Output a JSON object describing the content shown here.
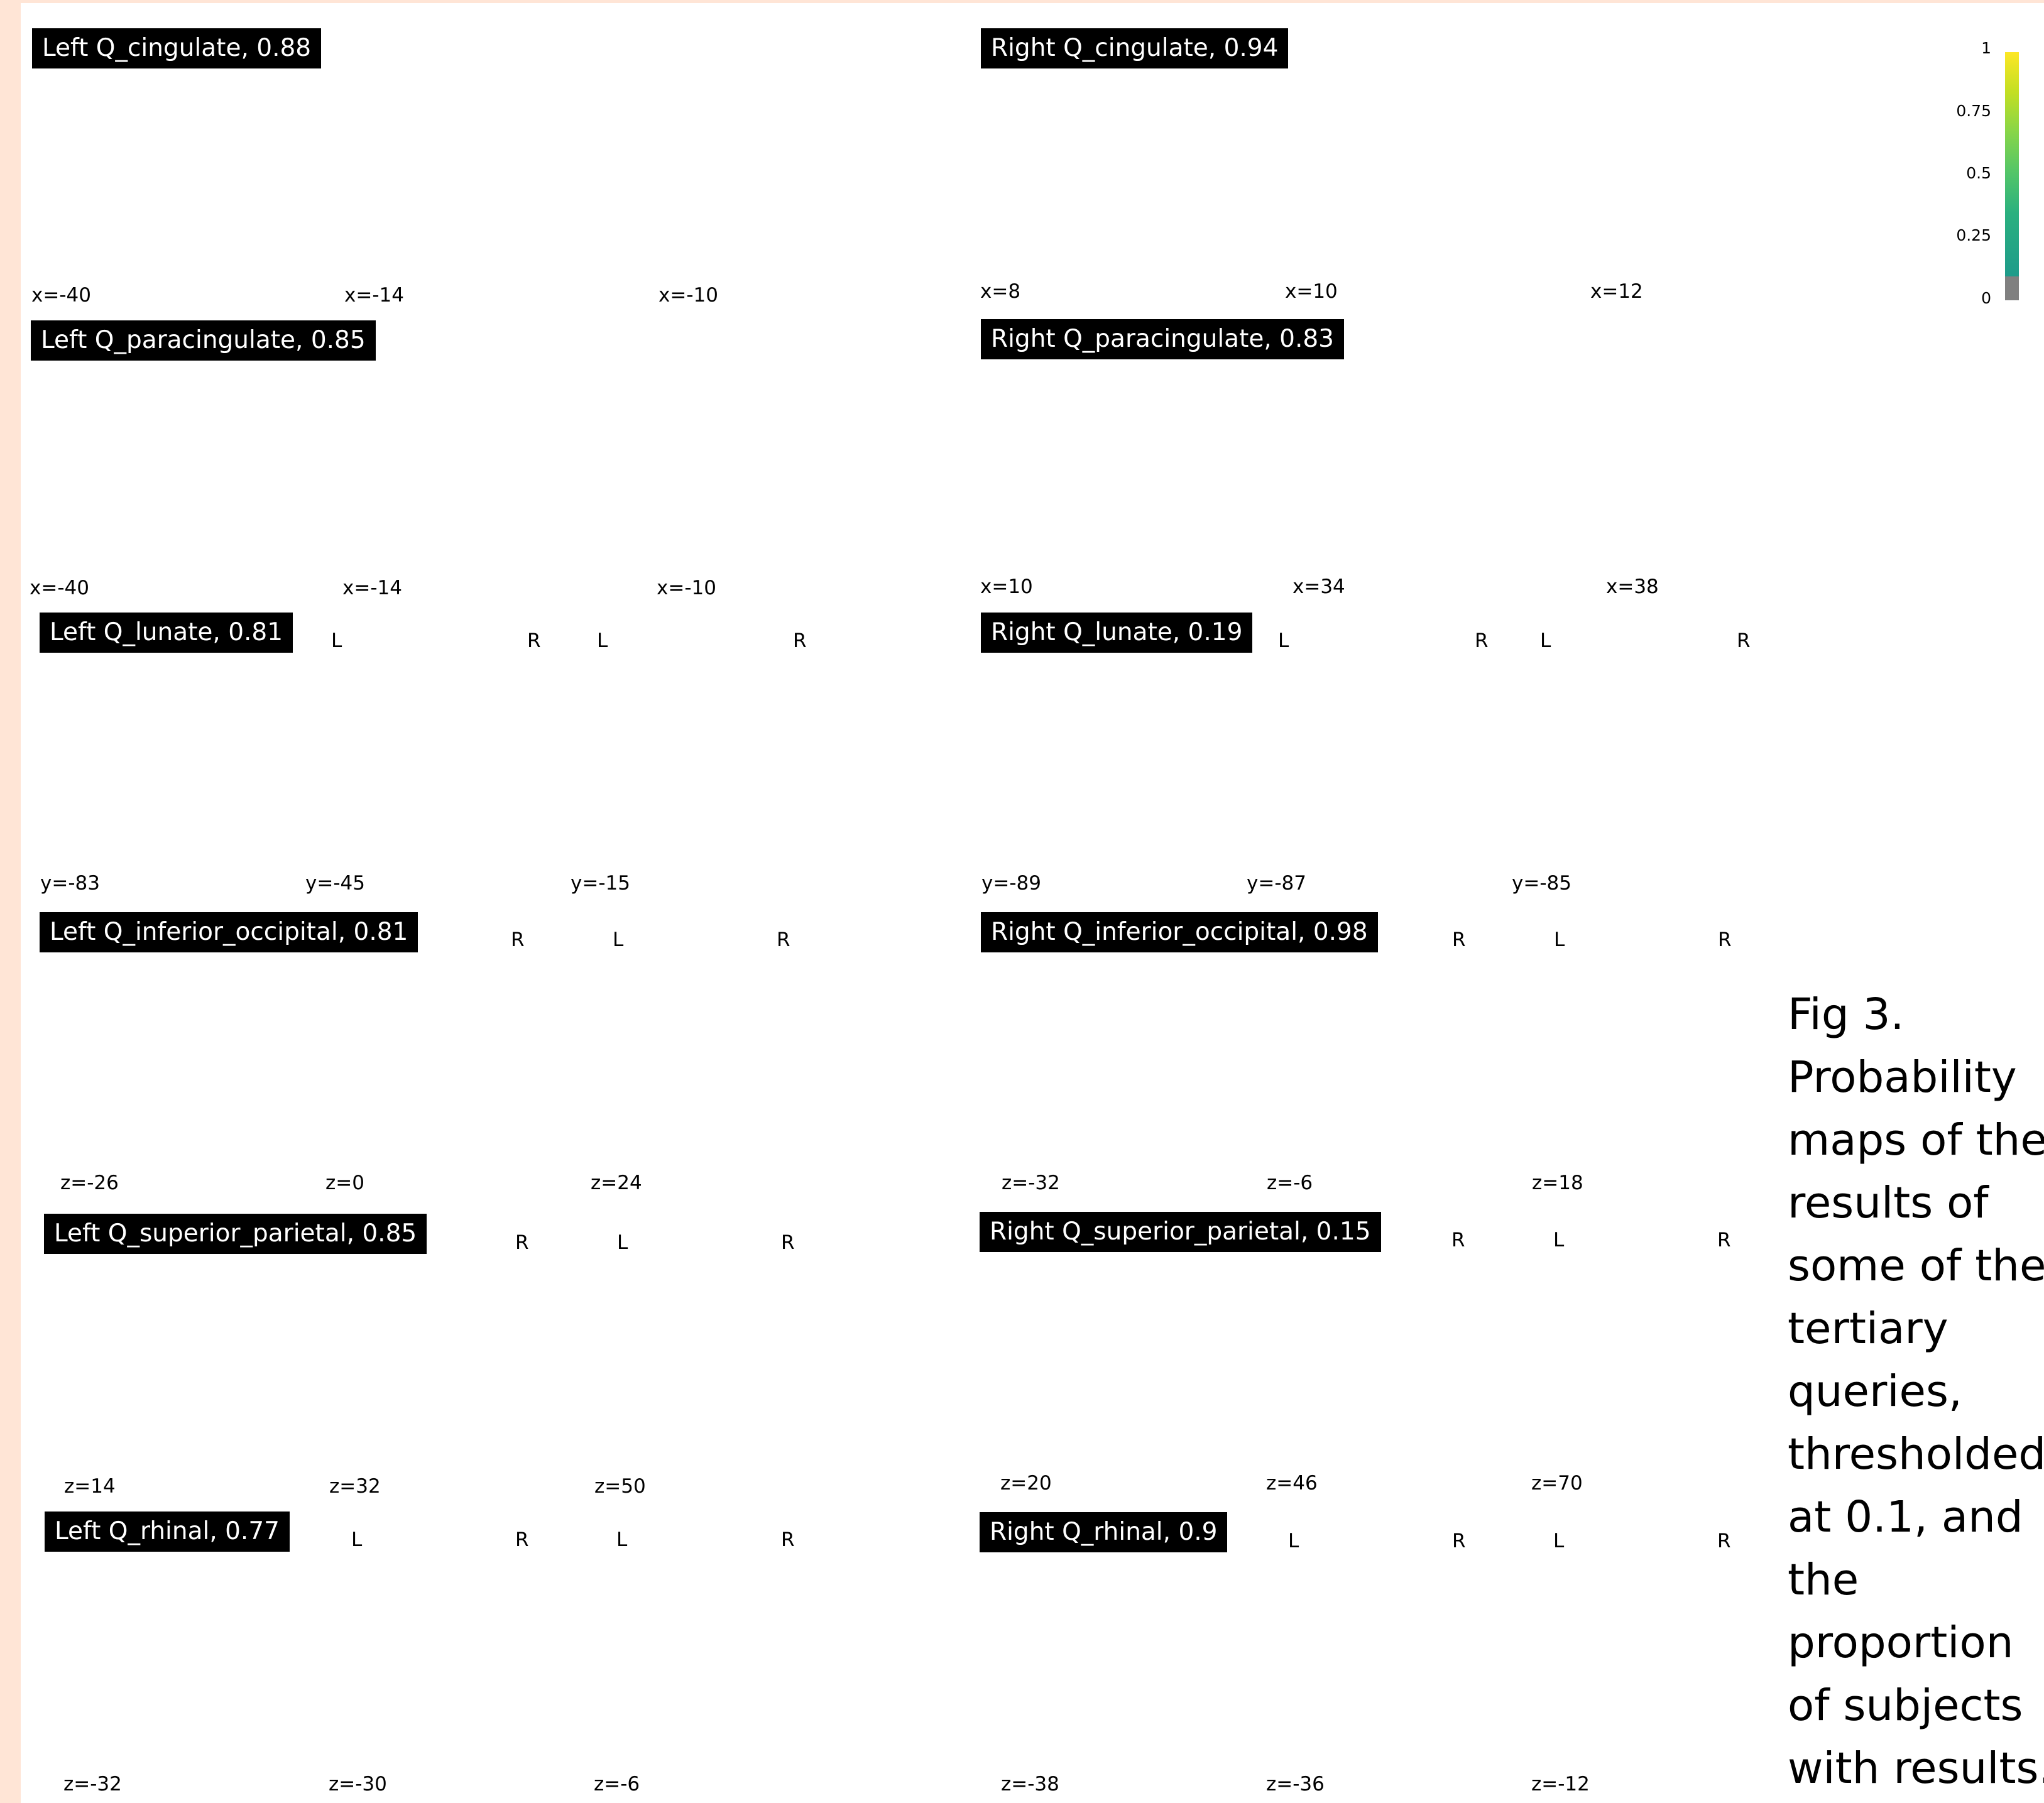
{
  "panels": {
    "left_cingulate": {
      "label": "Left Q_cingulate, 0.88",
      "coords": [
        "x=-40",
        "x=-14",
        "x=-10"
      ]
    },
    "right_cingulate": {
      "label": "Right Q_cingulate, 0.94",
      "coords": [
        "x=8",
        "x=10",
        "x=12"
      ]
    },
    "left_paracingulate": {
      "label": "Left Q_paracingulate, 0.85",
      "coords": [
        "x=-40",
        "x=-14",
        "x=-10"
      ]
    },
    "right_paracingulate": {
      "label": "Right Q_paracingulate, 0.83",
      "coords": [
        "x=10",
        "x=34",
        "x=38"
      ]
    },
    "left_lunate": {
      "label": "Left Q_lunate, 0.81",
      "coords": [
        "y=-83",
        "y=-45",
        "y=-15"
      ]
    },
    "right_lunate": {
      "label": "Right Q_lunate, 0.19",
      "coords": [
        "y=-89",
        "y=-87",
        "y=-85"
      ]
    },
    "left_inferior_occipital": {
      "label": "Left Q_inferior_occipital, 0.81",
      "coords": [
        "z=-26",
        "z=0",
        "z=24"
      ]
    },
    "right_inferior_occipital": {
      "label": "Right Q_inferior_occipital, 0.98",
      "coords": [
        "z=-32",
        "z=-6",
        "z=18"
      ]
    },
    "left_superior_parietal": {
      "label": "Left Q_superior_parietal, 0.85",
      "coords": [
        "z=14",
        "z=32",
        "z=50"
      ]
    },
    "right_superior_parietal": {
      "label": "Right Q_superior_parietal, 0.15",
      "coords": [
        "z=20",
        "z=46",
        "z=70"
      ]
    },
    "left_rhinal": {
      "label": "Left Q_rhinal, 0.77",
      "coords": [
        "z=-32",
        "z=-30",
        "z=-6"
      ]
    },
    "right_rhinal": {
      "label": "Right Q_rhinal, 0.9",
      "coords": [
        "z=-38",
        "z=-36",
        "z=-12"
      ]
    }
  },
  "orientation": {
    "left": "L",
    "right": "R"
  },
  "colorbar": {
    "ticks": [
      "1",
      "0.75",
      "0.5",
      "0.25",
      "0"
    ],
    "colormap": [
      "#fde725",
      "#86d549",
      "#2ab07f",
      "#1e9b8a"
    ],
    "below_threshold_color": "#808080"
  },
  "caption": "Fig 3.\nProbability\nmaps of the\nresults of\nsome of the\ntertiary\nqueries,\nthresholded\nat 0.1, and\nthe\nproportion\nof subjects\nwith results."
}
